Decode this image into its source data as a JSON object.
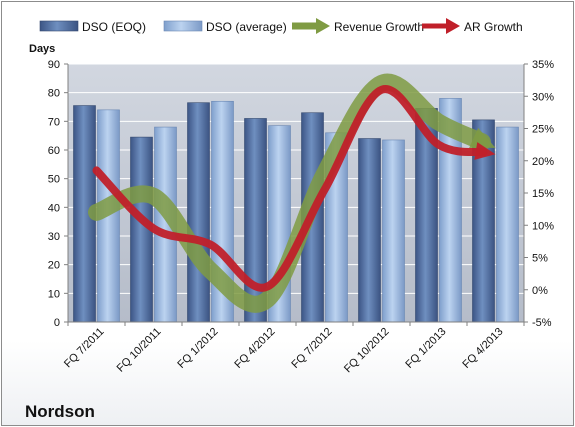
{
  "company": "Nordson",
  "colors": {
    "dso_eoq": "#4f6d9e",
    "dso_average": "#9ab9e2",
    "revenue_growth": "#7f9b43",
    "ar_growth": "#c0202a",
    "plot_background": "#c2c9d4",
    "gridline": "#ffffff"
  },
  "chart_data": {
    "type": "bar",
    "categories": [
      "FQ 7/2011",
      "FQ 10/2011",
      "FQ 1/2012",
      "FQ 4/2012",
      "FQ 7/2012",
      "FQ 10/2012",
      "FQ 1/2013",
      "FQ 4/2013"
    ],
    "left_axis": {
      "title": "Days",
      "ylim": [
        0,
        90
      ],
      "ticks": [
        0,
        10,
        20,
        30,
        40,
        50,
        60,
        70,
        80,
        90
      ],
      "tick_labels": [
        "0",
        "10",
        "20",
        "30",
        "40",
        "50",
        "60",
        "70",
        "80",
        "90"
      ]
    },
    "right_axis": {
      "ylim": [
        -5,
        35
      ],
      "ticks": [
        -5,
        0,
        5,
        10,
        15,
        20,
        25,
        30,
        35
      ],
      "tick_labels": [
        "-5%",
        "0%",
        "5%",
        "10%",
        "15%",
        "20%",
        "25%",
        "30%",
        "35%"
      ]
    },
    "series": [
      {
        "name": "DSO (EOQ)",
        "type": "bar",
        "axis": "left",
        "values": [
          75.5,
          64.5,
          76.5,
          71,
          73,
          64,
          74.5,
          70.5
        ]
      },
      {
        "name": "DSO (average)",
        "type": "bar",
        "axis": "left",
        "values": [
          74,
          68,
          77,
          68.5,
          66,
          63.5,
          78,
          68
        ]
      },
      {
        "name": "Revenue Growth",
        "type": "line",
        "axis": "right",
        "values": [
          12,
          14.5,
          3,
          -1.5,
          18,
          32,
          26,
          22
        ]
      },
      {
        "name": "AR Growth",
        "type": "line",
        "axis": "right",
        "values": [
          18.5,
          9.5,
          7,
          0.5,
          15.5,
          31,
          22.5,
          21
        ]
      }
    ],
    "legend_position": "top",
    "grid": true
  }
}
